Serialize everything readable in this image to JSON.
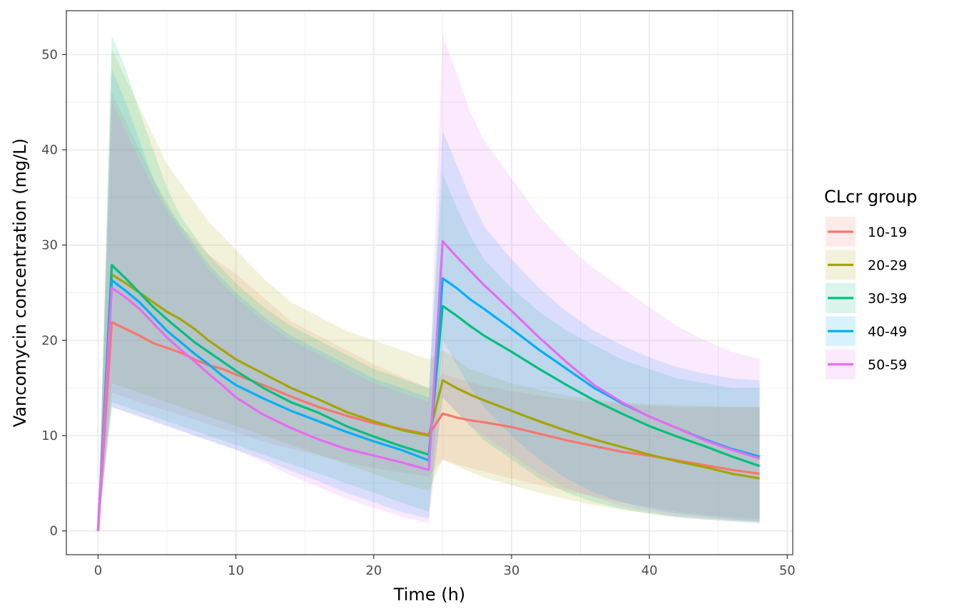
{
  "chart_data": {
    "type": "line",
    "xlabel": "Time (h)",
    "ylabel": "Vancomycin concentration (mg/L)",
    "xlim": [
      -2.3,
      50.4
    ],
    "ylim": [
      -2.5,
      54.6
    ],
    "x_ticks": [
      0,
      10,
      20,
      30,
      40,
      50
    ],
    "y_ticks": [
      0,
      10,
      20,
      30,
      40,
      50
    ],
    "grid": true,
    "legend": {
      "title": "CLcr group",
      "position": "right"
    },
    "x": [
      0,
      1,
      2,
      3,
      4,
      5,
      6,
      7,
      8,
      9,
      10,
      12,
      14,
      16,
      18,
      20,
      22,
      24,
      25,
      26,
      27,
      28,
      30,
      32,
      34,
      36,
      38,
      40,
      42,
      44,
      46,
      48
    ],
    "series": [
      {
        "name": "10-19",
        "color": "#F8766D",
        "median": [
          0,
          21.9,
          21.2,
          20.5,
          19.7,
          19.2,
          18.7,
          18.0,
          17.4,
          17.0,
          16.4,
          15.3,
          14.1,
          13.0,
          12.1,
          11.3,
          10.7,
          10.1,
          12.3,
          11.9,
          11.6,
          11.4,
          10.9,
          10.2,
          9.5,
          8.9,
          8.3,
          7.9,
          7.4,
          6.9,
          6.4,
          6.0
        ],
        "lower": [
          0,
          14.5,
          14.0,
          13.5,
          13.0,
          12.6,
          12.2,
          11.7,
          11.2,
          10.7,
          10.3,
          9.4,
          8.6,
          7.9,
          7.2,
          6.6,
          6.1,
          5.7,
          7.5,
          7.0,
          6.6,
          6.2,
          5.5,
          4.8,
          4.2,
          3.6,
          3.0,
          2.5,
          2.0,
          1.7,
          1.4,
          1.2
        ],
        "upper": [
          0,
          46.0,
          43.0,
          40.0,
          37.0,
          34.5,
          32.0,
          30.5,
          29.0,
          28.0,
          27.0,
          24.5,
          22.0,
          20.5,
          19.0,
          17.5,
          16.2,
          15.0,
          16.5,
          16.0,
          15.6,
          15.2,
          14.7,
          14.2,
          13.8,
          13.5,
          13.3,
          13.1,
          13.0,
          13.0,
          13.0,
          13.0
        ]
      },
      {
        "name": "20-29",
        "color": "#A3A500",
        "median": [
          0,
          26.9,
          26.0,
          25.0,
          24.0,
          23.0,
          22.2,
          21.2,
          20.0,
          19.0,
          18.0,
          16.5,
          15.0,
          13.8,
          12.5,
          11.5,
          10.6,
          10.0,
          15.8,
          15.0,
          14.3,
          13.7,
          12.6,
          11.5,
          10.5,
          9.6,
          8.8,
          8.0,
          7.3,
          6.7,
          6.0,
          5.5
        ],
        "lower": [
          0,
          15.5,
          15.0,
          14.5,
          14.0,
          13.5,
          13.0,
          12.5,
          12.0,
          11.5,
          11.0,
          10.0,
          9.0,
          8.0,
          7.0,
          6.0,
          5.0,
          4.2,
          7.5,
          6.8,
          6.2,
          5.6,
          4.8,
          4.0,
          3.3,
          2.7,
          2.2,
          1.8,
          1.5,
          1.3,
          1.1,
          1.0
        ],
        "upper": [
          0,
          50.5,
          47.5,
          44.5,
          41.5,
          38.5,
          36.5,
          34.5,
          32.5,
          31.0,
          29.5,
          26.5,
          24.0,
          22.5,
          21.0,
          20.0,
          19.0,
          18.0,
          19.0,
          18.0,
          17.0,
          16.5,
          15.5,
          14.8,
          14.2,
          13.8,
          13.5,
          13.3,
          13.2,
          13.1,
          13.0,
          13.0
        ]
      },
      {
        "name": "30-39",
        "color": "#00BF7D",
        "median": [
          0,
          27.9,
          26.5,
          25.0,
          23.5,
          22.2,
          21.0,
          19.8,
          18.8,
          17.8,
          16.8,
          15.0,
          13.5,
          12.4,
          11.0,
          9.9,
          8.9,
          8.0,
          23.6,
          22.6,
          21.5,
          20.5,
          18.8,
          17.0,
          15.3,
          13.7,
          12.3,
          11.0,
          9.9,
          8.9,
          7.8,
          6.8
        ],
        "lower": [
          0,
          13.5,
          13.0,
          12.5,
          12.0,
          11.5,
          11.0,
          10.5,
          10.0,
          9.5,
          9.0,
          8.0,
          7.0,
          6.0,
          5.0,
          4.0,
          3.0,
          2.0,
          14.0,
          12.5,
          11.0,
          9.5,
          7.5,
          5.5,
          4.0,
          3.0,
          2.3,
          1.8,
          1.4,
          1.2,
          1.0,
          0.8
        ],
        "upper": [
          0,
          52.0,
          48.5,
          44.0,
          40.0,
          36.0,
          33.0,
          31.0,
          29.0,
          27.5,
          26.0,
          23.5,
          21.5,
          20.0,
          18.5,
          17.0,
          16.0,
          15.0,
          37.5,
          34.0,
          31.0,
          28.5,
          25.5,
          23.0,
          21.0,
          19.5,
          18.0,
          17.0,
          16.0,
          15.5,
          15.0,
          15.0
        ]
      },
      {
        "name": "40-49",
        "color": "#00B0F6",
        "median": [
          0,
          26.3,
          25.2,
          24.0,
          22.5,
          21.0,
          19.8,
          18.6,
          17.5,
          16.3,
          15.3,
          13.9,
          12.6,
          11.5,
          10.4,
          9.4,
          8.5,
          7.4,
          26.5,
          25.5,
          24.3,
          23.3,
          21.2,
          19.0,
          17.0,
          15.0,
          13.4,
          12.0,
          10.8,
          9.6,
          8.6,
          7.8
        ],
        "lower": [
          0,
          13.0,
          12.5,
          12.0,
          11.5,
          11.0,
          10.5,
          10.0,
          9.5,
          9.0,
          8.5,
          7.5,
          6.3,
          5.2,
          4.0,
          3.0,
          2.0,
          1.3,
          20.0,
          17.5,
          15.0,
          13.0,
          10.0,
          7.5,
          5.5,
          4.0,
          3.0,
          2.3,
          1.8,
          1.5,
          1.2,
          1.0
        ],
        "upper": [
          0,
          48.5,
          45.0,
          41.0,
          37.0,
          34.0,
          32.0,
          30.0,
          28.0,
          26.5,
          25.0,
          22.5,
          20.5,
          19.0,
          17.5,
          16.0,
          15.0,
          14.0,
          42.0,
          38.5,
          35.0,
          32.0,
          28.5,
          25.5,
          23.0,
          21.0,
          19.5,
          18.2,
          17.2,
          16.5,
          16.0,
          15.8
        ]
      },
      {
        "name": "50-59",
        "color": "#E76BF3",
        "median": [
          0,
          25.5,
          24.5,
          23.3,
          21.8,
          20.3,
          19.0,
          17.8,
          16.5,
          15.3,
          14.0,
          12.2,
          10.8,
          9.6,
          8.6,
          7.9,
          7.2,
          6.4,
          30.4,
          28.8,
          27.3,
          25.8,
          23.1,
          20.3,
          17.7,
          15.3,
          13.5,
          12.0,
          10.8,
          9.5,
          8.5,
          7.6
        ],
        "lower": [
          0,
          13.0,
          12.5,
          12.0,
          11.5,
          11.0,
          10.5,
          10.0,
          9.5,
          9.0,
          8.5,
          7.2,
          5.8,
          4.6,
          3.4,
          2.4,
          1.5,
          0.8,
          14.0,
          12.5,
          11.0,
          10.0,
          8.0,
          6.0,
          4.5,
          3.5,
          2.6,
          2.0,
          1.5,
          1.2,
          1.0,
          0.8
        ],
        "upper": [
          0,
          45.0,
          42.0,
          39.0,
          36.0,
          33.5,
          31.5,
          29.5,
          27.5,
          26.0,
          24.5,
          22.0,
          20.0,
          18.5,
          17.0,
          15.5,
          14.5,
          13.5,
          52.0,
          48.0,
          44.0,
          41.0,
          37.0,
          33.0,
          30.0,
          27.5,
          25.5,
          23.5,
          21.5,
          20.0,
          18.8,
          18.0
        ]
      }
    ]
  }
}
